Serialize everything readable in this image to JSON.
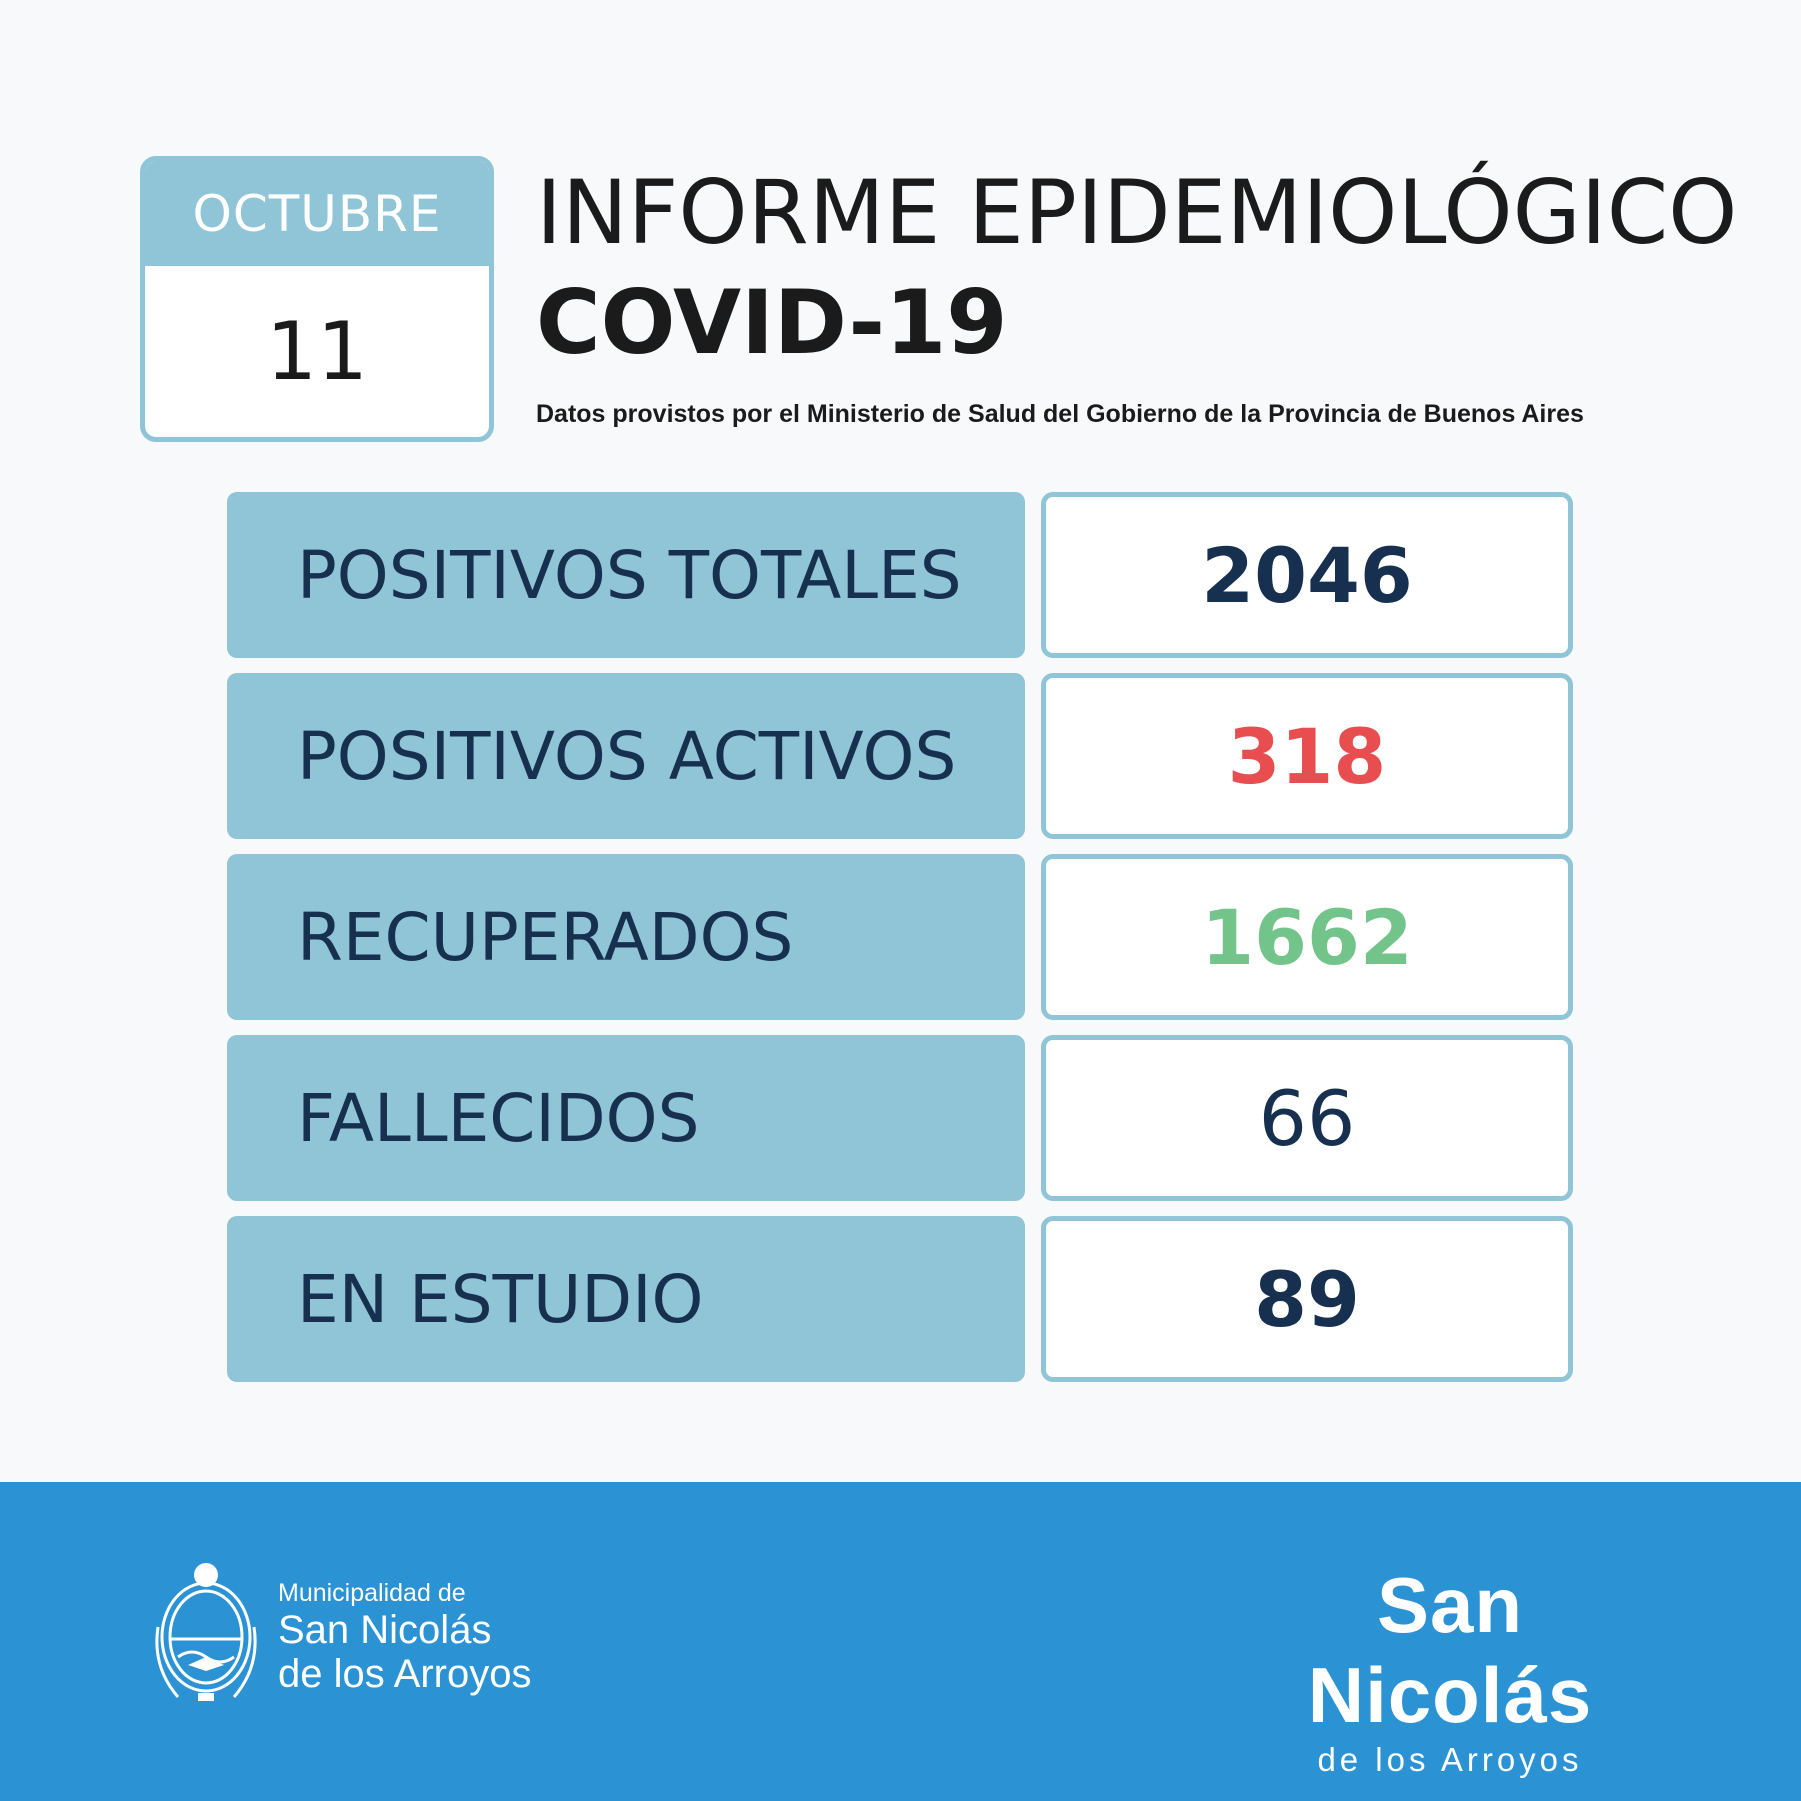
{
  "date": {
    "month": "OCTUBRE",
    "day": "11"
  },
  "header": {
    "title_line1": "INFORME EPIDEMIOLÓGICO",
    "title_line2": "COVID-19",
    "subtitle": "Datos provistos por el Ministerio de Salud del Gobierno de la Provincia de Buenos Aires"
  },
  "stats": [
    {
      "label": "POSITIVOS TOTALES",
      "value": "2046",
      "color": "#17304f"
    },
    {
      "label": "POSITIVOS ACTIVOS",
      "value": "318",
      "color": "#e84e50"
    },
    {
      "label": "RECUPERADOS",
      "value": "1662",
      "color": "#73c48b"
    },
    {
      "label": "FALLECIDOS",
      "value": "66",
      "color": "#17304f"
    },
    {
      "label": "EN ESTUDIO",
      "value": "89",
      "color": "#17304f"
    }
  ],
  "footer": {
    "muni_line1": "Municipalidad de",
    "muni_line2": "San Nicolás",
    "muni_line3": "de los Arroyos",
    "brand_name": "San Nicolás",
    "brand_sub": "de los Arroyos"
  },
  "colors": {
    "accent": "#90c4d7",
    "footer_bg": "#2b93d3",
    "text_dark": "#17304f"
  }
}
